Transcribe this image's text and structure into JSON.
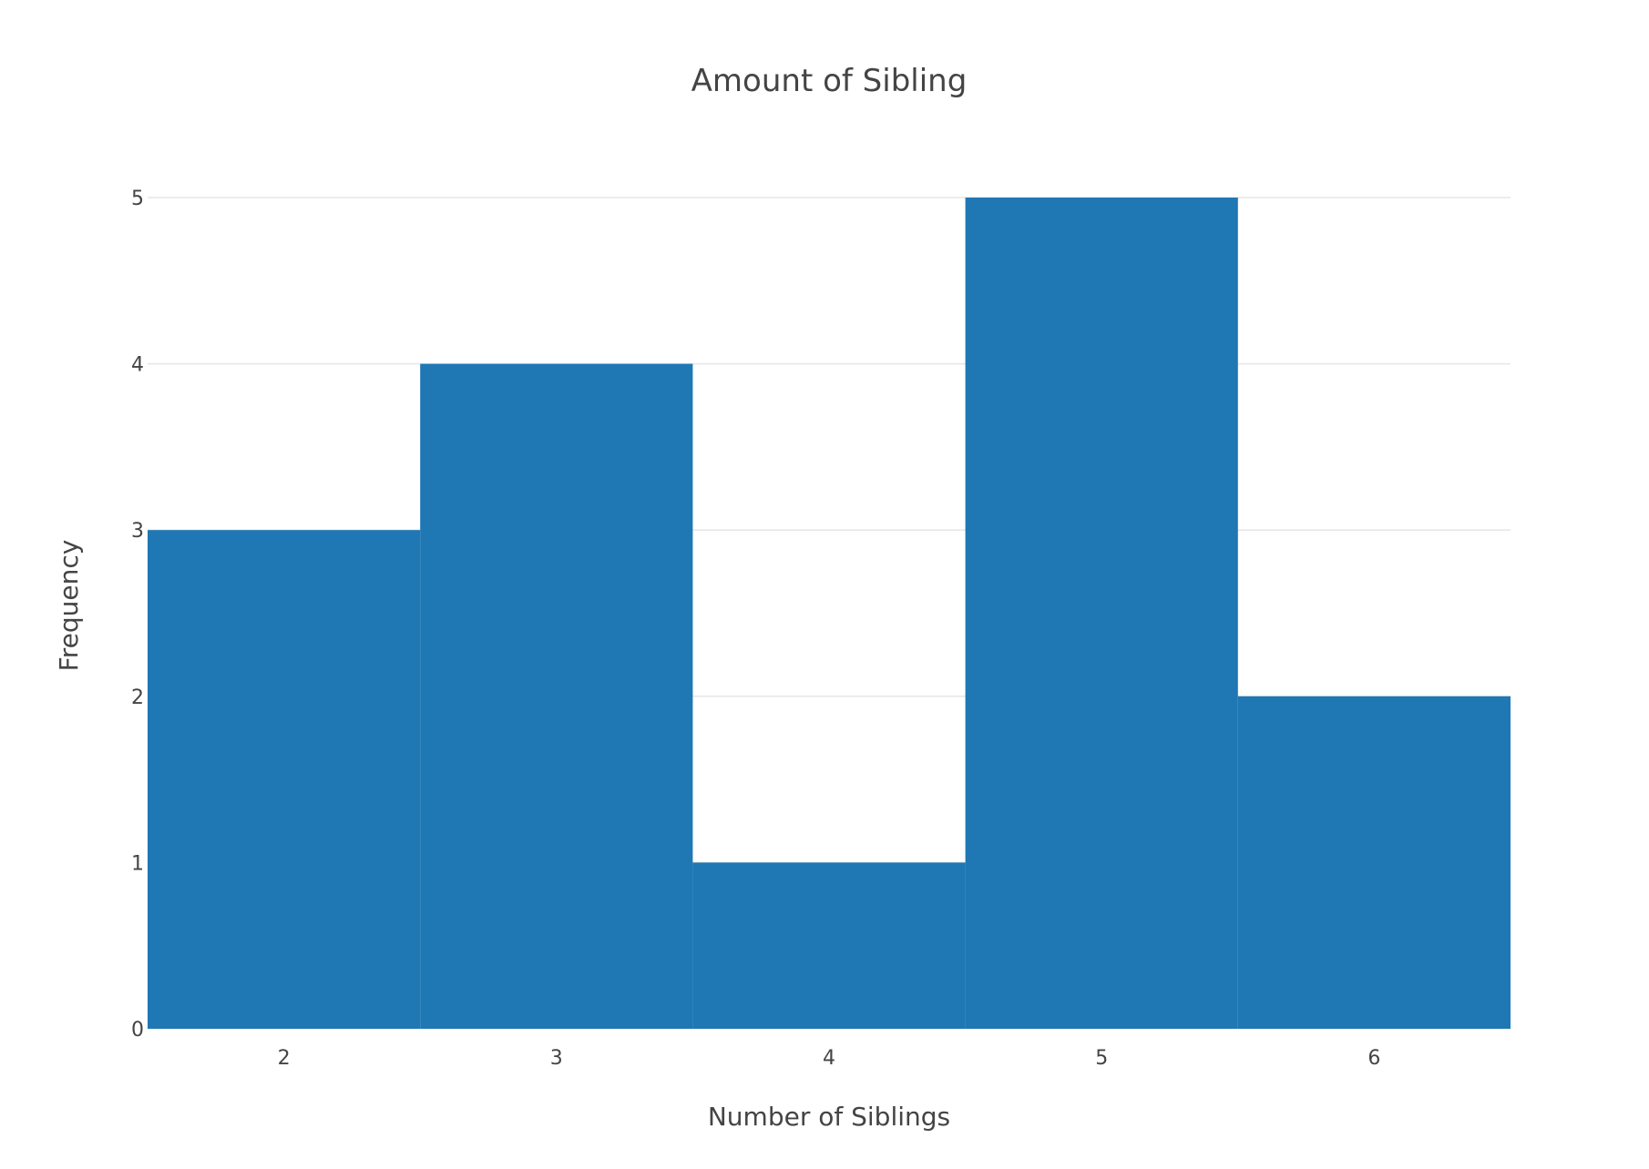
{
  "chart_data": {
    "type": "bar",
    "title": "Amount of Sibling",
    "xlabel": "Number of Siblings",
    "ylabel": "Frequency",
    "categories": [
      2,
      3,
      4,
      5,
      6
    ],
    "values": [
      3,
      4,
      1,
      5,
      2
    ],
    "x_ticks": [
      "2",
      "3",
      "4",
      "5",
      "6"
    ],
    "y_ticks": [
      "0",
      "1",
      "2",
      "3",
      "4",
      "5"
    ],
    "xlim": [
      1.5,
      6.5
    ],
    "ylim": [
      0,
      5.263
    ],
    "bar_gap": 0,
    "grid": "horizontal",
    "legend": "none",
    "colors": {
      "bar": "#1f77b4",
      "text": "#444444",
      "grid": "#e6e6e6",
      "background": "#ffffff"
    }
  }
}
